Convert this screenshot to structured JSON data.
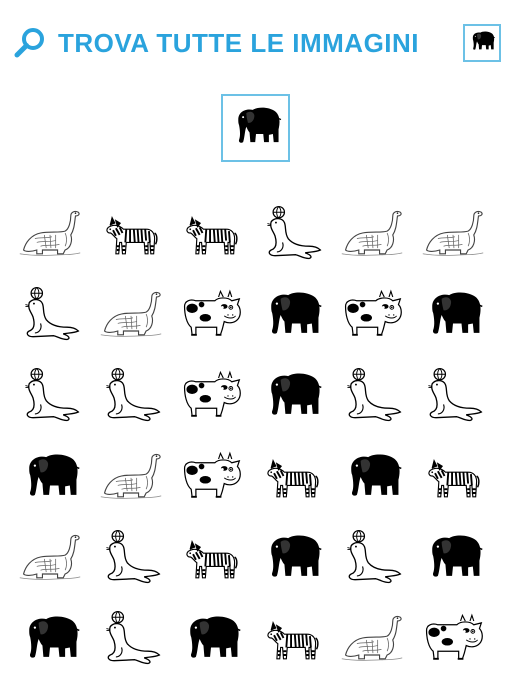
{
  "header": {
    "title": "TROVA TUTTE LE IMMAGINI",
    "search_icon": "magnifier-icon",
    "corner_icon": "elephant"
  },
  "target": {
    "animal": "elephant"
  },
  "colors": {
    "accent": "#2aa3dd",
    "box_border": "#6cc1e6"
  },
  "grid": {
    "rows": [
      [
        "dinosaur",
        "zebra",
        "zebra",
        "seal",
        "dinosaur",
        "dinosaur"
      ],
      [
        "seal",
        "dinosaur",
        "cow",
        "elephant",
        "cow",
        "elephant"
      ],
      [
        "seal",
        "seal",
        "cow",
        "elephant",
        "seal",
        "seal"
      ],
      [
        "elephant",
        "dinosaur",
        "cow",
        "zebra",
        "elephant",
        "zebra"
      ],
      [
        "dinosaur",
        "seal",
        "zebra",
        "elephant",
        "seal",
        "elephant"
      ],
      [
        "elephant",
        "seal",
        "elephant",
        "zebra",
        "dinosaur",
        "cow"
      ]
    ]
  }
}
